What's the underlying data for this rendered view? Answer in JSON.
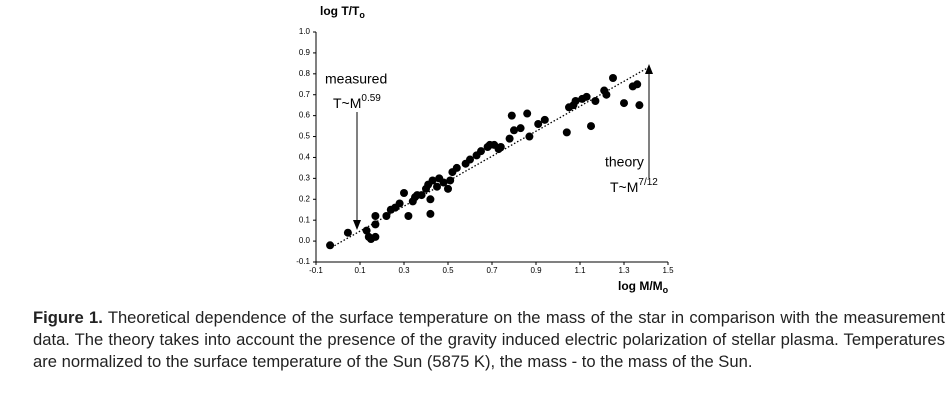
{
  "chart_data": {
    "type": "scatter",
    "y_label": "log T/T",
    "y_label_sub": "o",
    "x_label": "log M/M",
    "x_label_sub": "o",
    "annotations": {
      "measured": {
        "label": "measured",
        "formula": "T~M",
        "exponent": "0.59"
      },
      "theory": {
        "label": "theory",
        "formula": "T~M",
        "exponent": "7/12"
      }
    },
    "xlim": [
      -0.1,
      1.5
    ],
    "ylim": [
      -0.1,
      1.0
    ],
    "xticks": [
      -0.1,
      0.1,
      0.3,
      0.5,
      0.7,
      0.9,
      1.1,
      1.3,
      1.5
    ],
    "yticks": [
      -0.1,
      {
        "value": 0,
        "label": "0.0"
      },
      0.1,
      0.2,
      0.3,
      0.4,
      0.5,
      0.6,
      0.7,
      0.8,
      0.9,
      {
        "value": 1,
        "label": "1.0"
      }
    ],
    "color": "#000000",
    "x": [
      -0.036,
      0.045,
      0.13,
      0.14,
      0.15,
      0.17,
      0.17,
      0.17,
      0.22,
      0.24,
      0.26,
      0.28,
      0.3,
      0.32,
      0.34,
      0.35,
      0.36,
      0.38,
      0.4,
      0.41,
      0.42,
      0.42,
      0.43,
      0.45,
      0.46,
      0.48,
      0.5,
      0.51,
      0.52,
      0.54,
      0.58,
      0.6,
      0.63,
      0.65,
      0.68,
      0.69,
      0.71,
      0.73,
      0.74,
      0.78,
      0.79,
      0.8,
      0.83,
      0.86,
      0.87,
      0.91,
      0.94,
      1.04,
      1.05,
      1.07,
      1.08,
      1.11,
      1.13,
      1.15,
      1.17,
      1.21,
      1.22,
      1.25,
      1.3,
      1.34,
      1.36,
      1.37
    ],
    "values": [
      -0.02,
      0.04,
      0.05,
      0.02,
      0.01,
      0.02,
      0.08,
      0.12,
      0.12,
      0.15,
      0.16,
      0.18,
      0.23,
      0.12,
      0.19,
      0.21,
      0.22,
      0.22,
      0.25,
      0.27,
      0.2,
      0.13,
      0.29,
      0.26,
      0.3,
      0.28,
      0.25,
      0.29,
      0.33,
      0.35,
      0.37,
      0.39,
      0.41,
      0.43,
      0.45,
      0.46,
      0.46,
      0.44,
      0.45,
      0.49,
      0.6,
      0.53,
      0.54,
      0.61,
      0.5,
      0.56,
      0.58,
      0.52,
      0.64,
      0.65,
      0.67,
      0.68,
      0.69,
      0.55,
      0.67,
      0.72,
      0.7,
      0.78,
      0.66,
      0.74,
      0.75,
      0.65
    ],
    "fit_line": {
      "x": [
        -0.03,
        1.41
      ],
      "y": [
        -0.03,
        0.83
      ]
    },
    "caption": {
      "label": "Figure 1.",
      "text": "Theoretical dependence of the surface temperature on the mass of the star in comparison with the measurement data. The theory takes into account the presence of the gravity induced electric polarization of stellar plasma. Temperatures are normalized to the surface temperature of the Sun (5875 K), the mass - to the mass of the Sun."
    }
  }
}
